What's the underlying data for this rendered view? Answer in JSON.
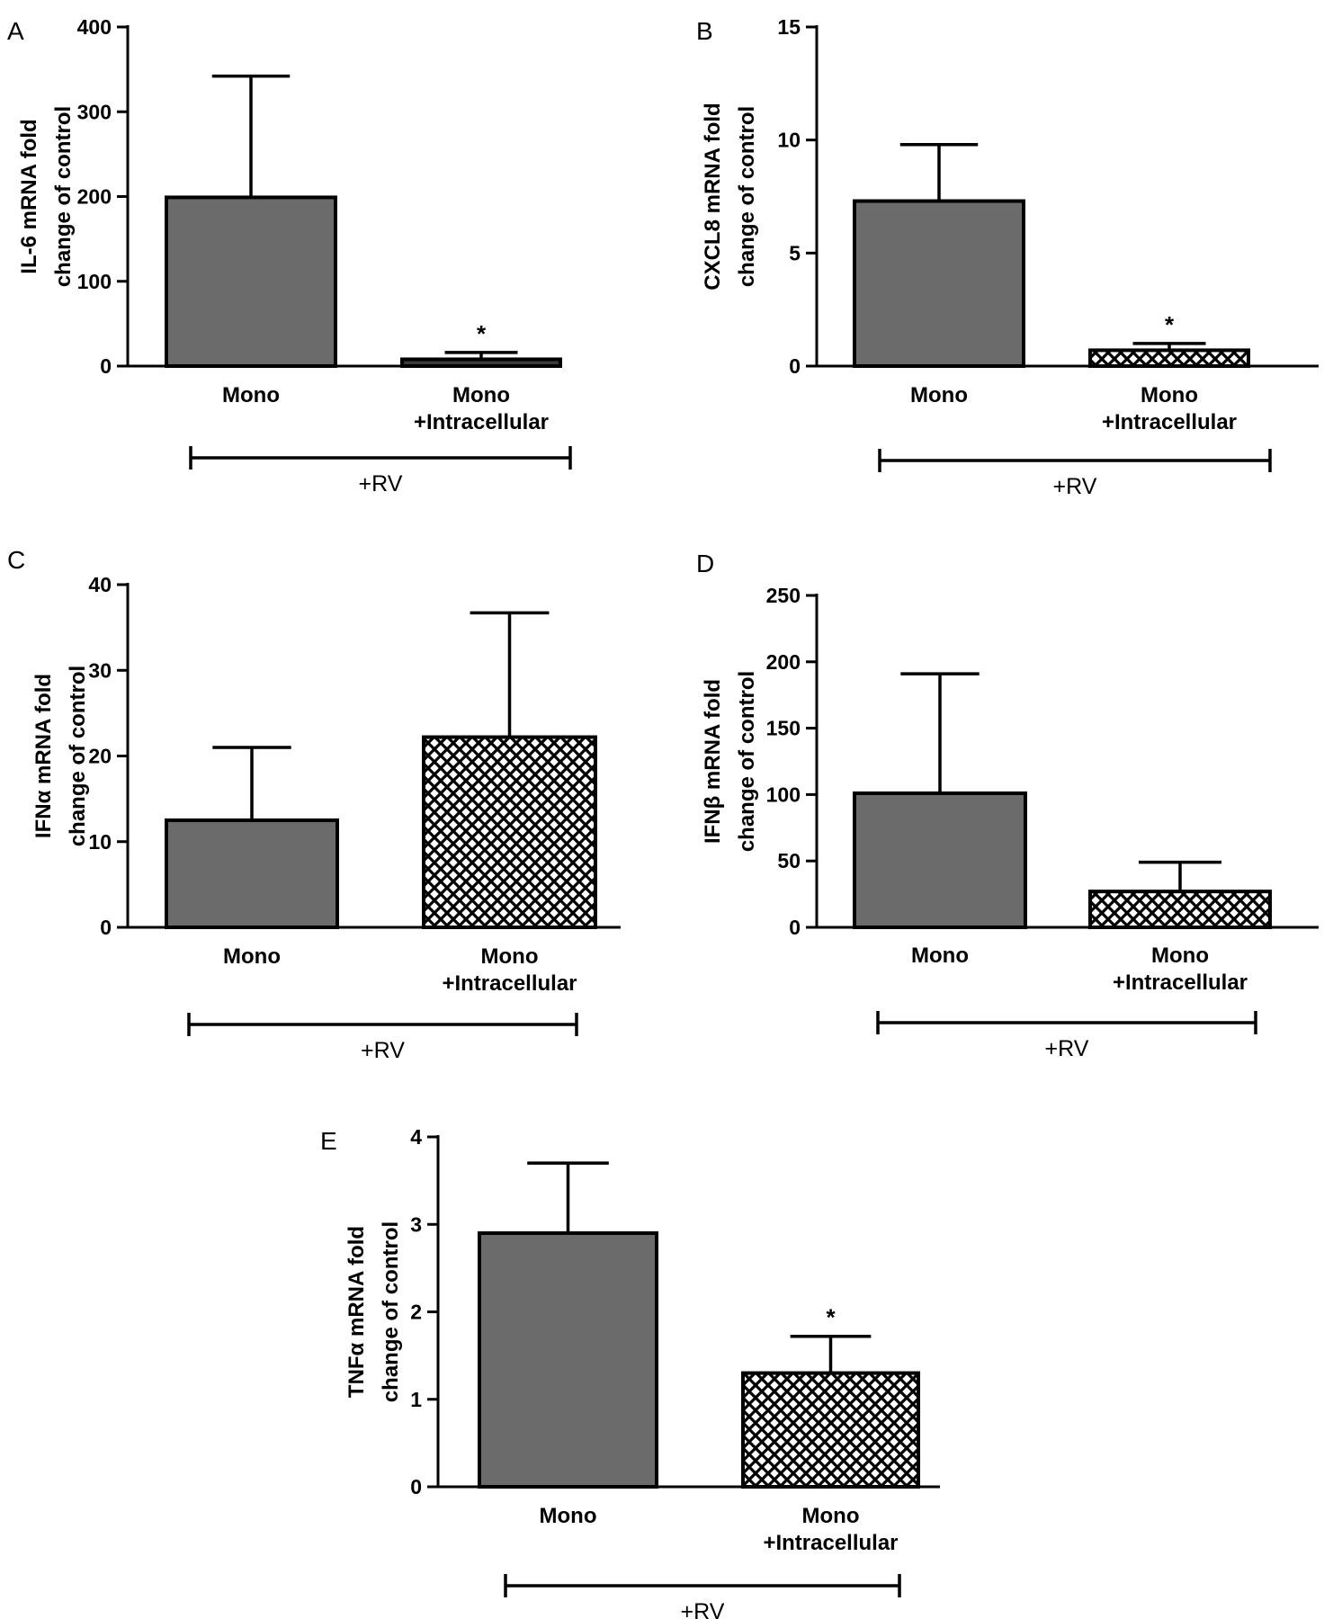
{
  "colors": {
    "solid_bar": "#6b6b6b",
    "hatch_fg": "#000000",
    "hatch_bg": "#ffffff",
    "axis": "#000000"
  },
  "chart_data": [
    {
      "panel": "A",
      "type": "bar",
      "ylabel_lines": [
        "IL-6 mRNA fold",
        "change of control"
      ],
      "ylim": [
        0,
        400
      ],
      "yticks": [
        0,
        100,
        200,
        300,
        400
      ],
      "categories": [
        [
          "Mono"
        ],
        [
          "Mono",
          "+Intracellular"
        ]
      ],
      "values": [
        199,
        8
      ],
      "errors": [
        143,
        8
      ],
      "fills": [
        "solid",
        "solid_dark"
      ],
      "significance": [
        "",
        "*"
      ],
      "group_label": "+RV"
    },
    {
      "panel": "B",
      "type": "bar",
      "ylabel_lines": [
        "CXCL8 mRNA fold",
        "change of control"
      ],
      "ylim": [
        0,
        15
      ],
      "yticks": [
        0,
        5,
        10,
        15
      ],
      "categories": [
        [
          "Mono"
        ],
        [
          "Mono",
          "+Intracellular"
        ]
      ],
      "values": [
        7.3,
        0.7
      ],
      "errors": [
        2.5,
        0.3
      ],
      "fills": [
        "solid",
        "hatch"
      ],
      "significance": [
        "",
        "*"
      ],
      "group_label": "+RV"
    },
    {
      "panel": "C",
      "type": "bar",
      "ylabel_lines": [
        "IFNα mRNA fold",
        "change of control"
      ],
      "ylim": [
        0,
        40
      ],
      "yticks": [
        0,
        10,
        20,
        30,
        40
      ],
      "categories": [
        [
          "Mono"
        ],
        [
          "Mono",
          "+Intracellular"
        ]
      ],
      "values": [
        12.5,
        22.2
      ],
      "errors": [
        8.5,
        14.5
      ],
      "fills": [
        "solid",
        "hatch"
      ],
      "significance": [
        "",
        ""
      ],
      "group_label": "+RV"
    },
    {
      "panel": "D",
      "type": "bar",
      "ylabel_lines": [
        "IFNβ mRNA fold",
        "change of control"
      ],
      "ylim": [
        0,
        250
      ],
      "yticks": [
        0,
        50,
        100,
        150,
        200,
        250
      ],
      "categories": [
        [
          "Mono"
        ],
        [
          "Mono",
          "+Intracellular"
        ]
      ],
      "values": [
        101,
        27
      ],
      "errors": [
        90,
        22
      ],
      "fills": [
        "solid",
        "hatch"
      ],
      "significance": [
        "",
        ""
      ],
      "group_label": "+RV"
    },
    {
      "panel": "E",
      "type": "bar",
      "ylabel_lines": [
        "TNFα mRNA fold",
        "change of control"
      ],
      "ylim": [
        0,
        4
      ],
      "yticks": [
        0,
        1,
        2,
        3,
        4
      ],
      "categories": [
        [
          "Mono"
        ],
        [
          "Mono",
          "+Intracellular"
        ]
      ],
      "values": [
        2.9,
        1.3
      ],
      "errors": [
        0.8,
        0.42
      ],
      "fills": [
        "solid",
        "hatch"
      ],
      "significance": [
        "",
        "*"
      ],
      "group_label": "+RV"
    }
  ]
}
